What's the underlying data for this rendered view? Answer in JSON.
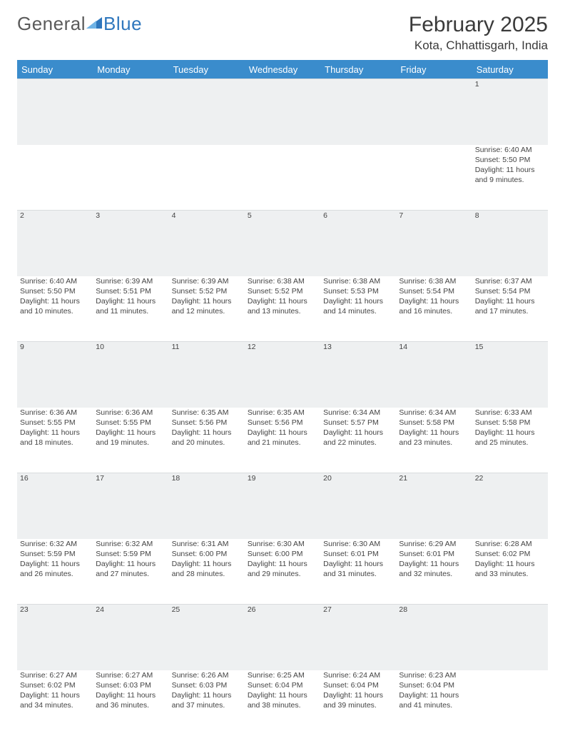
{
  "brand": {
    "part1": "General",
    "part2": "Blue"
  },
  "title": "February 2025",
  "location": "Kota, Chhattisgarh, India",
  "colors": {
    "header_bg": "#3a8ccc",
    "header_text": "#ffffff",
    "daynum_bg": "#eef0f1",
    "text": "#444444",
    "rule": "#3a8ccc"
  },
  "weekdays": [
    "Sunday",
    "Monday",
    "Tuesday",
    "Wednesday",
    "Thursday",
    "Friday",
    "Saturday"
  ],
  "weeks": [
    [
      null,
      null,
      null,
      null,
      null,
      null,
      {
        "n": "1",
        "sr": "6:40 AM",
        "ss": "5:50 PM",
        "dl": "11 hours and 9 minutes."
      }
    ],
    [
      {
        "n": "2",
        "sr": "6:40 AM",
        "ss": "5:50 PM",
        "dl": "11 hours and 10 minutes."
      },
      {
        "n": "3",
        "sr": "6:39 AM",
        "ss": "5:51 PM",
        "dl": "11 hours and 11 minutes."
      },
      {
        "n": "4",
        "sr": "6:39 AM",
        "ss": "5:52 PM",
        "dl": "11 hours and 12 minutes."
      },
      {
        "n": "5",
        "sr": "6:38 AM",
        "ss": "5:52 PM",
        "dl": "11 hours and 13 minutes."
      },
      {
        "n": "6",
        "sr": "6:38 AM",
        "ss": "5:53 PM",
        "dl": "11 hours and 14 minutes."
      },
      {
        "n": "7",
        "sr": "6:38 AM",
        "ss": "5:54 PM",
        "dl": "11 hours and 16 minutes."
      },
      {
        "n": "8",
        "sr": "6:37 AM",
        "ss": "5:54 PM",
        "dl": "11 hours and 17 minutes."
      }
    ],
    [
      {
        "n": "9",
        "sr": "6:36 AM",
        "ss": "5:55 PM",
        "dl": "11 hours and 18 minutes."
      },
      {
        "n": "10",
        "sr": "6:36 AM",
        "ss": "5:55 PM",
        "dl": "11 hours and 19 minutes."
      },
      {
        "n": "11",
        "sr": "6:35 AM",
        "ss": "5:56 PM",
        "dl": "11 hours and 20 minutes."
      },
      {
        "n": "12",
        "sr": "6:35 AM",
        "ss": "5:56 PM",
        "dl": "11 hours and 21 minutes."
      },
      {
        "n": "13",
        "sr": "6:34 AM",
        "ss": "5:57 PM",
        "dl": "11 hours and 22 minutes."
      },
      {
        "n": "14",
        "sr": "6:34 AM",
        "ss": "5:58 PM",
        "dl": "11 hours and 23 minutes."
      },
      {
        "n": "15",
        "sr": "6:33 AM",
        "ss": "5:58 PM",
        "dl": "11 hours and 25 minutes."
      }
    ],
    [
      {
        "n": "16",
        "sr": "6:32 AM",
        "ss": "5:59 PM",
        "dl": "11 hours and 26 minutes."
      },
      {
        "n": "17",
        "sr": "6:32 AM",
        "ss": "5:59 PM",
        "dl": "11 hours and 27 minutes."
      },
      {
        "n": "18",
        "sr": "6:31 AM",
        "ss": "6:00 PM",
        "dl": "11 hours and 28 minutes."
      },
      {
        "n": "19",
        "sr": "6:30 AM",
        "ss": "6:00 PM",
        "dl": "11 hours and 29 minutes."
      },
      {
        "n": "20",
        "sr": "6:30 AM",
        "ss": "6:01 PM",
        "dl": "11 hours and 31 minutes."
      },
      {
        "n": "21",
        "sr": "6:29 AM",
        "ss": "6:01 PM",
        "dl": "11 hours and 32 minutes."
      },
      {
        "n": "22",
        "sr": "6:28 AM",
        "ss": "6:02 PM",
        "dl": "11 hours and 33 minutes."
      }
    ],
    [
      {
        "n": "23",
        "sr": "6:27 AM",
        "ss": "6:02 PM",
        "dl": "11 hours and 34 minutes."
      },
      {
        "n": "24",
        "sr": "6:27 AM",
        "ss": "6:03 PM",
        "dl": "11 hours and 36 minutes."
      },
      {
        "n": "25",
        "sr": "6:26 AM",
        "ss": "6:03 PM",
        "dl": "11 hours and 37 minutes."
      },
      {
        "n": "26",
        "sr": "6:25 AM",
        "ss": "6:04 PM",
        "dl": "11 hours and 38 minutes."
      },
      {
        "n": "27",
        "sr": "6:24 AM",
        "ss": "6:04 PM",
        "dl": "11 hours and 39 minutes."
      },
      {
        "n": "28",
        "sr": "6:23 AM",
        "ss": "6:04 PM",
        "dl": "11 hours and 41 minutes."
      },
      null
    ]
  ],
  "labels": {
    "sunrise": "Sunrise: ",
    "sunset": "Sunset: ",
    "daylight": "Daylight: "
  }
}
